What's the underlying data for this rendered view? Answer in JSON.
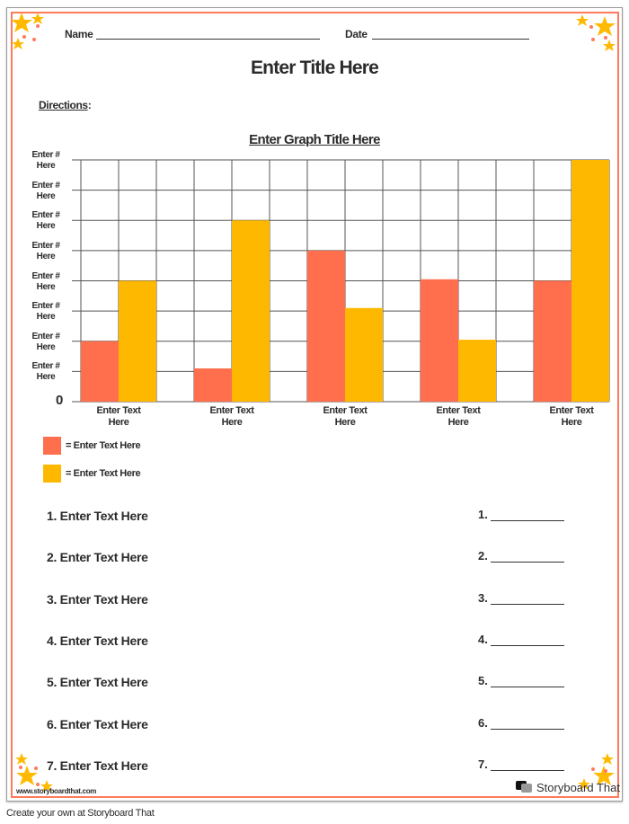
{
  "header": {
    "name_label": "Name",
    "date_label": "Date"
  },
  "title": "Enter Title Here",
  "directions_label": "Directions",
  "directions_colon": ":",
  "colors": {
    "series1": "#ff6e4d",
    "series2": "#ffb800",
    "border": "#ff7a5c",
    "star": "#ffba00"
  },
  "chart_data": {
    "type": "bar",
    "title": "Enter Graph Title Here",
    "categories": [
      "Enter Text Here",
      "Enter Text Here",
      "Enter Text Here",
      "Enter Text Here",
      "Enter Text Here"
    ],
    "y_tick_labels": [
      "0",
      "Enter # Here",
      "Enter # Here",
      "Enter # Here",
      "Enter # Here",
      "Enter # Here",
      "Enter # Here",
      "Enter # Here",
      "Enter # Here"
    ],
    "ylim": [
      0,
      8
    ],
    "grid": true,
    "series": [
      {
        "name": "= Enter Text Here",
        "values": [
          2,
          1.1,
          5,
          4.05,
          4
        ]
      },
      {
        "name": "= Enter Text Here",
        "values": [
          4,
          6,
          3.1,
          2.05,
          8
        ]
      }
    ],
    "legend": "bottom-left"
  },
  "questions": [
    "1. Enter Text Here",
    "2. Enter Text Here",
    "3. Enter Text Here",
    "4. Enter Text Here",
    "5. Enter Text Here",
    "6. Enter Text Here",
    "7. Enter Text Here"
  ],
  "answers": [
    "1.",
    "2.",
    "3.",
    "4.",
    "5.",
    "6.",
    "7."
  ],
  "watermark": {
    "site": "www.storyboardthat.com",
    "logo": "Storyboard That"
  },
  "footer": "Create your own at Storyboard That"
}
